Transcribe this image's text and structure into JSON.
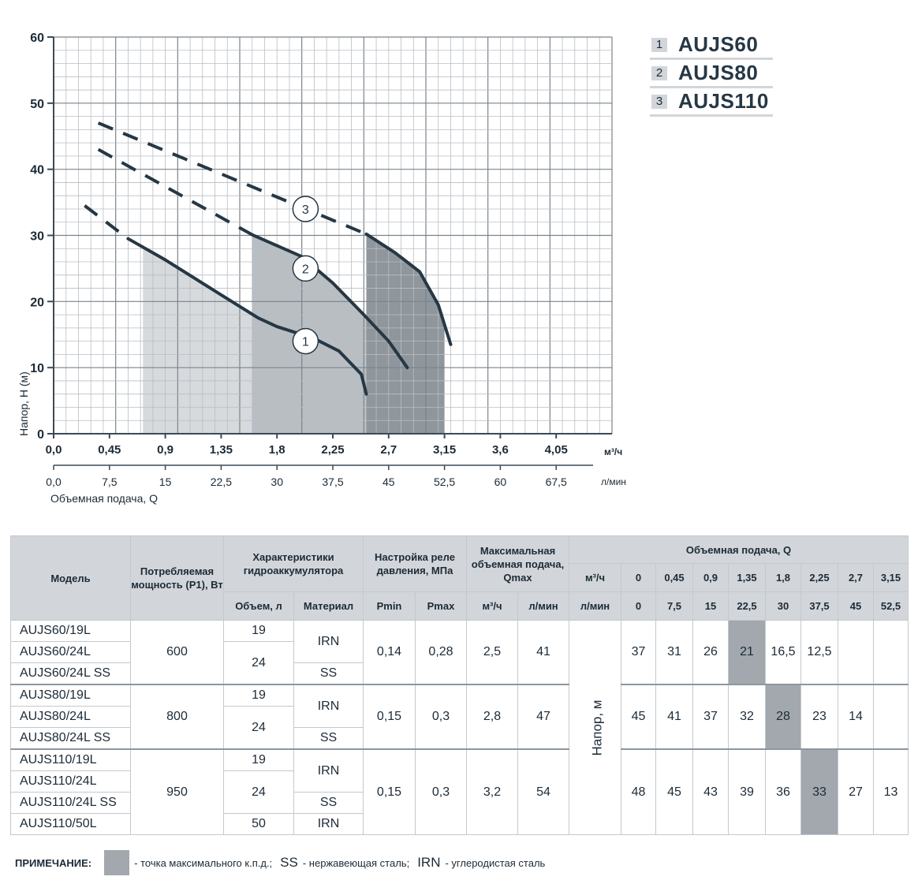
{
  "chart_data": {
    "type": "line",
    "xlabel": "Объемная подача, Q",
    "ylabel": "Напор, H (м)",
    "x_unit": "м³/ч",
    "x2_unit": "л/мин",
    "xlim": [
      0,
      4.5
    ],
    "ylim": [
      0,
      60
    ],
    "x_ticks": [
      "0,0",
      "0,45",
      "0,9",
      "1,35",
      "1,8",
      "2,25",
      "2,7",
      "3,15",
      "3,6",
      "4,05"
    ],
    "x2_ticks": [
      "0,0",
      "7,5",
      "15",
      "22,5",
      "30",
      "37,5",
      "45",
      "52,5",
      "60",
      "67,5"
    ],
    "y_ticks": [
      "0",
      "10",
      "20",
      "30",
      "40",
      "50",
      "60"
    ],
    "grid": true,
    "series": [
      {
        "name": "1",
        "dashed": [
          [
            0.25,
            34.5
          ],
          [
            0.6,
            29.5
          ]
        ],
        "solid": [
          [
            0.6,
            29.5
          ],
          [
            0.9,
            26.3
          ],
          [
            1.35,
            21
          ],
          [
            1.65,
            17.5
          ],
          [
            1.8,
            16.2
          ],
          [
            2.1,
            14.4
          ],
          [
            2.3,
            12.5
          ],
          [
            2.48,
            9
          ],
          [
            2.52,
            6
          ]
        ],
        "shade": [
          0.72,
          2.52
        ]
      },
      {
        "name": "2",
        "dashed": [
          [
            0.36,
            43
          ],
          [
            1.6,
            30.1
          ]
        ],
        "solid": [
          [
            1.6,
            30.1
          ],
          [
            2.0,
            26.8
          ],
          [
            2.25,
            22.8
          ],
          [
            2.5,
            18
          ],
          [
            2.7,
            14
          ],
          [
            2.85,
            10
          ]
        ],
        "shade": [
          1.6,
          2.85
        ]
      },
      {
        "name": "3",
        "dashed": [
          [
            0.36,
            47
          ],
          [
            2.52,
            30.2
          ]
        ],
        "solid": [
          [
            2.52,
            30.2
          ],
          [
            2.75,
            27.4
          ],
          [
            2.95,
            24.5
          ],
          [
            3.1,
            19.5
          ],
          [
            3.2,
            13.5
          ]
        ],
        "shade": [
          2.52,
          3.15
        ]
      }
    ],
    "markers": [
      {
        "label": "1",
        "x": 2.03,
        "y": 14
      },
      {
        "label": "2",
        "x": 2.03,
        "y": 25
      },
      {
        "label": "3",
        "x": 2.03,
        "y": 34
      }
    ]
  },
  "legend": [
    {
      "num": "1",
      "name": "AUJS60"
    },
    {
      "num": "2",
      "name": "AUJS80"
    },
    {
      "num": "3",
      "name": "AUJS110"
    }
  ],
  "table": {
    "headers": {
      "model": "Модель",
      "power": "Потребляемая мощность (P1), Вт",
      "tank": "Характеристики гидроаккумулятора",
      "relay": "Настройка реле давления, МПа",
      "qmax": "Максимальная объемная подача, Qmax",
      "flow": "Объемная подача, Q",
      "volume": "Объем, л",
      "material": "Материал",
      "pmin": "Pmin",
      "pmax": "Pmax",
      "m3h": "м³/ч",
      "lmin": "л/мин",
      "flow_m3h_label": "м³/ч",
      "flow_lmin_label": "л/мин",
      "flow_m3h": [
        "0",
        "0,45",
        "0,9",
        "1,35",
        "1,8",
        "2,25",
        "2,7",
        "3,15"
      ],
      "flow_lmin": [
        "0",
        "7,5",
        "15",
        "22,5",
        "30",
        "37,5",
        "45",
        "52,5"
      ],
      "head_label": "Напор, м"
    },
    "groups": [
      {
        "models": [
          "AUJS60/19L",
          "AUJS60/24L",
          "AUJS60/24L SS"
        ],
        "power": "600",
        "volumes": [
          "19",
          "24"
        ],
        "materials": [
          "IRN",
          "SS"
        ],
        "pmin": "0,14",
        "pmax": "0,28",
        "qmax_m3h": "2,5",
        "qmax_lmin": "41",
        "heads": [
          "37",
          "31",
          "26",
          "21",
          "16,5",
          "12,5",
          "",
          ""
        ],
        "best_index": 3
      },
      {
        "models": [
          "AUJS80/19L",
          "AUJS80/24L",
          "AUJS80/24L SS"
        ],
        "power": "800",
        "volumes": [
          "19",
          "24"
        ],
        "materials": [
          "IRN",
          "SS"
        ],
        "pmin": "0,15",
        "pmax": "0,3",
        "qmax_m3h": "2,8",
        "qmax_lmin": "47",
        "heads": [
          "45",
          "41",
          "37",
          "32",
          "28",
          "23",
          "14",
          ""
        ],
        "best_index": 4
      },
      {
        "models": [
          "AUJS110/19L",
          "AUJS110/24L",
          "AUJS110/24L SS",
          "AUJS110/50L"
        ],
        "power": "950",
        "volumes": [
          "19",
          "24",
          "50"
        ],
        "materials": [
          "IRN",
          "SS",
          "IRN"
        ],
        "pmin": "0,15",
        "pmax": "0,3",
        "qmax_m3h": "3,2",
        "qmax_lmin": "54",
        "heads": [
          "48",
          "45",
          "43",
          "39",
          "36",
          "33",
          "27",
          "13"
        ],
        "best_index": 5
      }
    ]
  },
  "footnote": {
    "label": "ПРИМЕЧАНИЕ:",
    "swatch_text": "- точка максимального к.п.д.;",
    "ss_code": "SS",
    "ss_text": "- нержавеющая сталь;",
    "irn_code": "IRN",
    "irn_text": "- углеродистая сталь"
  },
  "colors": {
    "grid": "#b9bec3",
    "grid_major": "#7a838b",
    "curve": "#263744",
    "shade1": "#d6dadd",
    "shade2": "#b9bec3",
    "shade3": "#8f969c",
    "header_bg": "#d2d6da",
    "highlight": "#a2a8ae"
  }
}
